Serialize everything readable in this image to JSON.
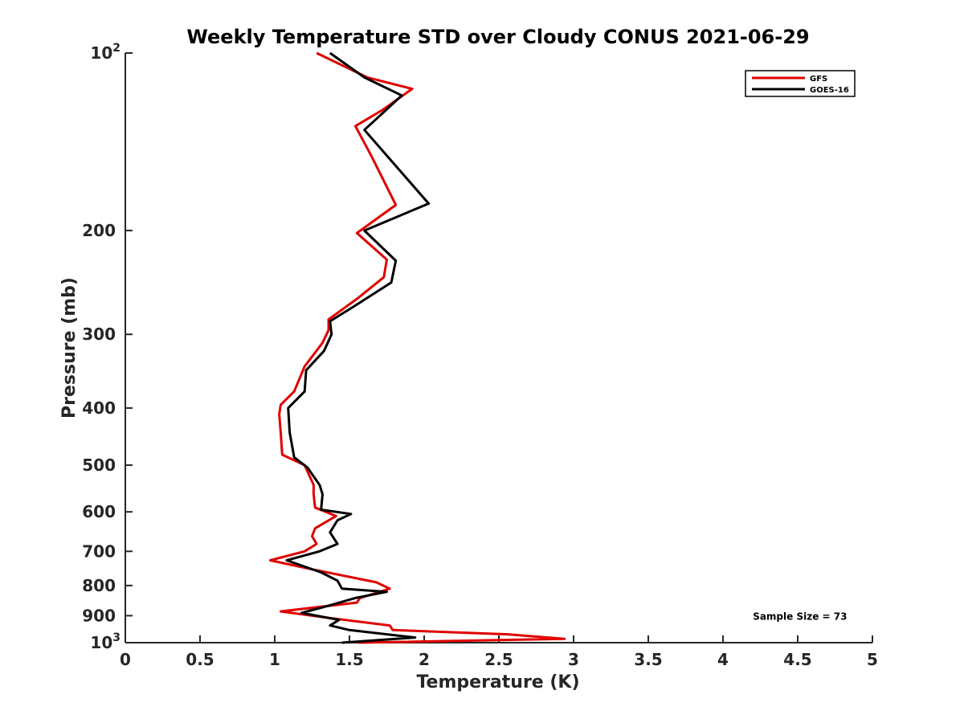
{
  "chart_data": {
    "type": "line",
    "title": "Weekly Temperature STD over Cloudy CONUS 2021-06-29",
    "xlabel": "Temperature (K)",
    "ylabel": "Pressure (mb)",
    "xlim": [
      0,
      5
    ],
    "ylim": [
      100,
      1000
    ],
    "y_scale": "log",
    "y_reversed": true,
    "grid": false,
    "legend_position": "top-right",
    "x_ticks": [
      "0",
      "0.5",
      "1",
      "1.5",
      "2",
      "2.5",
      "3",
      "3.5",
      "4",
      "4.5",
      "5"
    ],
    "y_ticks": [
      {
        "value": 100,
        "label": "10",
        "sup": "2"
      },
      {
        "value": 200,
        "label": "200",
        "sup": ""
      },
      {
        "value": 300,
        "label": "300",
        "sup": ""
      },
      {
        "value": 400,
        "label": "400",
        "sup": ""
      },
      {
        "value": 500,
        "label": "500",
        "sup": ""
      },
      {
        "value": 600,
        "label": "600",
        "sup": ""
      },
      {
        "value": 700,
        "label": "700",
        "sup": ""
      },
      {
        "value": 800,
        "label": "800",
        "sup": ""
      },
      {
        "value": 900,
        "label": "900",
        "sup": ""
      },
      {
        "value": 1000,
        "label": "10",
        "sup": "3"
      }
    ],
    "series": [
      {
        "name": "GFS",
        "color": "#e00000",
        "points": [
          [
            1.28,
            100
          ],
          [
            1.62,
            110
          ],
          [
            1.92,
            115
          ],
          [
            1.72,
            125
          ],
          [
            1.54,
            133
          ],
          [
            1.65,
            150
          ],
          [
            1.81,
            181
          ],
          [
            1.55,
            202
          ],
          [
            1.75,
            224
          ],
          [
            1.73,
            240
          ],
          [
            1.56,
            260
          ],
          [
            1.36,
            283
          ],
          [
            1.36,
            295
          ],
          [
            1.32,
            310
          ],
          [
            1.2,
            340
          ],
          [
            1.13,
            375
          ],
          [
            1.04,
            395
          ],
          [
            1.03,
            410
          ],
          [
            1.04,
            440
          ],
          [
            1.05,
            480
          ],
          [
            1.2,
            500
          ],
          [
            1.26,
            540
          ],
          [
            1.26,
            560
          ],
          [
            1.27,
            590
          ],
          [
            1.41,
            610
          ],
          [
            1.27,
            640
          ],
          [
            1.25,
            660
          ],
          [
            1.28,
            680
          ],
          [
            1.2,
            700
          ],
          [
            0.97,
            725
          ],
          [
            1.24,
            750
          ],
          [
            1.68,
            790
          ],
          [
            1.77,
            810
          ],
          [
            1.57,
            840
          ],
          [
            1.55,
            855
          ],
          [
            1.04,
            885
          ],
          [
            1.32,
            905
          ],
          [
            1.77,
            935
          ],
          [
            1.79,
            952
          ],
          [
            2.56,
            968
          ],
          [
            2.94,
            985
          ],
          [
            1.56,
            1000
          ]
        ]
      },
      {
        "name": "GOES-16",
        "color": "#000000",
        "points": [
          [
            1.37,
            100
          ],
          [
            1.6,
            110
          ],
          [
            1.85,
            118
          ],
          [
            1.7,
            128
          ],
          [
            1.6,
            135
          ],
          [
            2.03,
            180
          ],
          [
            1.6,
            200
          ],
          [
            1.81,
            225
          ],
          [
            1.78,
            245
          ],
          [
            1.52,
            270
          ],
          [
            1.37,
            285
          ],
          [
            1.38,
            300
          ],
          [
            1.33,
            320
          ],
          [
            1.21,
            345
          ],
          [
            1.2,
            375
          ],
          [
            1.09,
            400
          ],
          [
            1.1,
            440
          ],
          [
            1.13,
            485
          ],
          [
            1.22,
            505
          ],
          [
            1.3,
            540
          ],
          [
            1.32,
            560
          ],
          [
            1.31,
            595
          ],
          [
            1.51,
            605
          ],
          [
            1.42,
            620
          ],
          [
            1.37,
            650
          ],
          [
            1.42,
            680
          ],
          [
            1.3,
            700
          ],
          [
            1.08,
            725
          ],
          [
            1.31,
            760
          ],
          [
            1.42,
            785
          ],
          [
            1.45,
            810
          ],
          [
            1.75,
            820
          ],
          [
            1.54,
            840
          ],
          [
            1.33,
            870
          ],
          [
            1.18,
            890
          ],
          [
            1.43,
            915
          ],
          [
            1.37,
            935
          ],
          [
            1.5,
            952
          ],
          [
            1.94,
            980
          ],
          [
            1.45,
            1000
          ]
        ]
      }
    ],
    "annotations": [
      {
        "text": "Sample Size = 73",
        "x": 4.2,
        "y": 900
      }
    ]
  }
}
